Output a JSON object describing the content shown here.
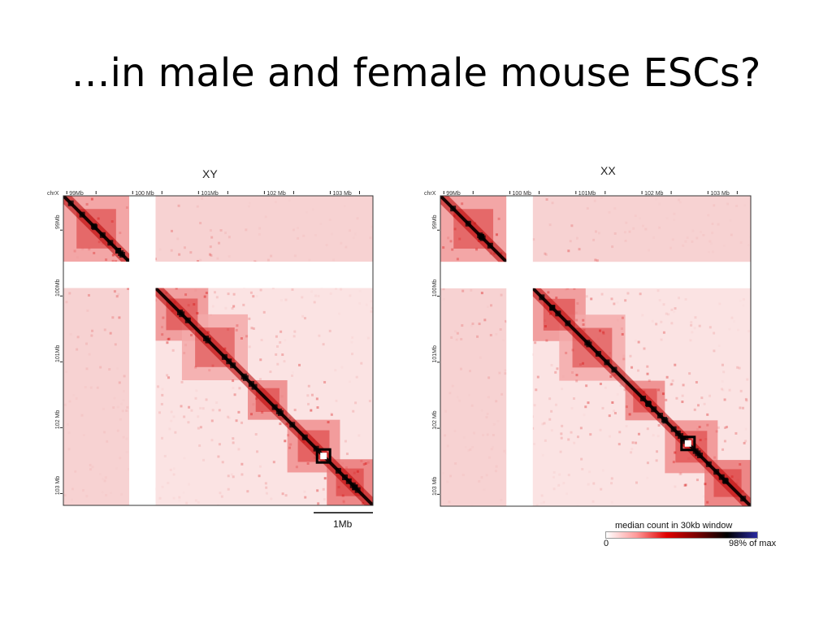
{
  "slide": {
    "title": "…in male and female mouse ESCs?"
  },
  "chart_data": [
    {
      "type": "heatmap",
      "title": "XY",
      "chromosome": "chrX",
      "x_ticks": [
        "99Mb",
        "100 Mb",
        "101Mb",
        "102 Mb",
        "103 Mb"
      ],
      "y_ticks": [
        "99Mb",
        "100Mb",
        "101Mb",
        "102 Mb",
        "103 Mb"
      ],
      "range_mb": [
        98.8,
        103.5
      ],
      "unmappable_gap_mb": [
        99.8,
        100.2
      ],
      "domains_mb": [
        [
          98.8,
          99.8
        ],
        [
          100.2,
          101.0
        ],
        [
          100.6,
          101.6
        ],
        [
          101.6,
          102.2
        ],
        [
          102.2,
          103.0
        ],
        [
          102.8,
          103.5
        ]
      ],
      "scale_bar_label": "1Mb",
      "scale_bar_mb": 1
    },
    {
      "type": "heatmap",
      "title": "XX",
      "chromosome": "chrX",
      "x_ticks": [
        "99Mb",
        "100 Mb",
        "101Mb",
        "102 Mb",
        "103 Mb"
      ],
      "y_ticks": [
        "99Mb",
        "100Mb",
        "101Mb",
        "102 Mb",
        "103 Mb"
      ],
      "range_mb": [
        98.8,
        103.5
      ],
      "unmappable_gap_mb": [
        99.8,
        100.2
      ],
      "domains_mb": [
        [
          98.8,
          99.8
        ],
        [
          100.2,
          101.0
        ],
        [
          100.6,
          101.6
        ],
        [
          101.6,
          102.2
        ],
        [
          102.2,
          103.0
        ],
        [
          102.8,
          103.5
        ]
      ],
      "colorbar": {
        "title": "median count in 30kb window",
        "min_label": "0",
        "max_label": "98% of max",
        "colors": [
          "#ffffff",
          "#ff9a9a",
          "#e00000",
          "#7a0000",
          "#000000",
          "#2a2aa0"
        ]
      }
    }
  ]
}
